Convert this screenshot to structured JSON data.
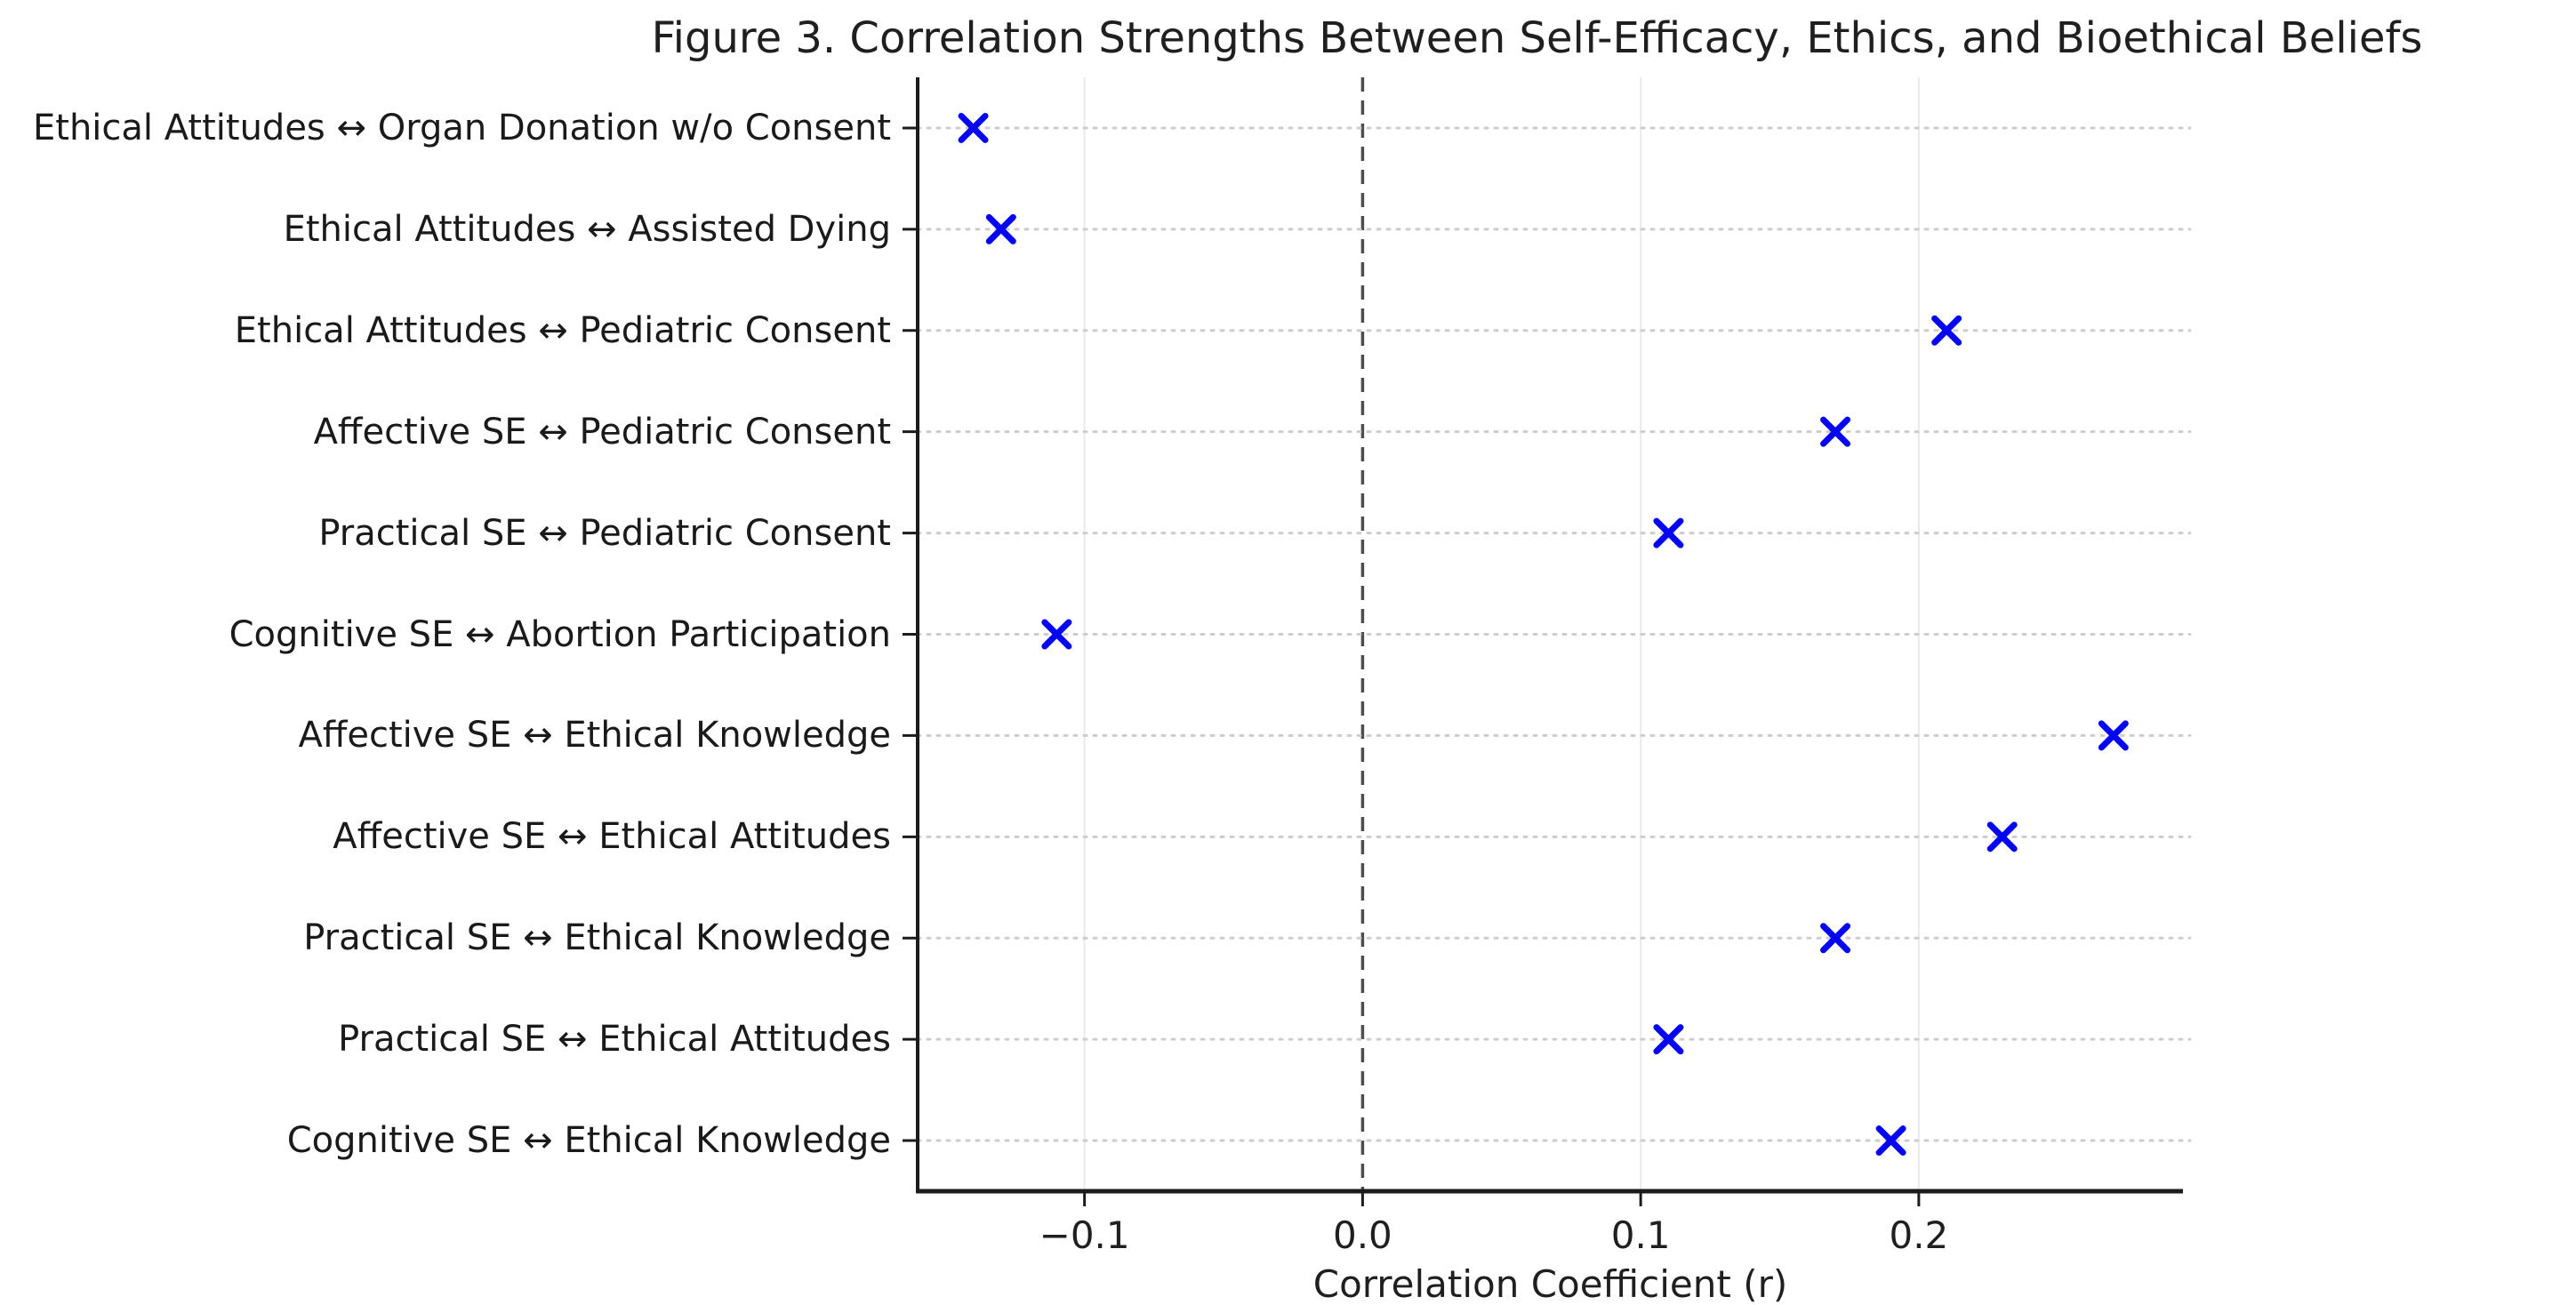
{
  "chart_data": {
    "type": "scatter",
    "orientation": "horizontal",
    "title": "Figure 3. Correlation Strengths Between Self-Efficacy, Ethics, and Bioethical Beliefs",
    "xlabel": "Correlation Coefficient (r)",
    "ylabel": "",
    "legend_position": "none",
    "categories": [
      "Ethical Attitudes ↔ Organ Donation w/o Consent",
      "Ethical Attitudes ↔ Assisted Dying",
      "Ethical Attitudes ↔ Pediatric Consent",
      "Affective SE ↔ Pediatric Consent",
      "Practical SE ↔ Pediatric Consent",
      "Cognitive SE ↔ Abortion Participation",
      "Affective SE ↔ Ethical Knowledge",
      "Affective SE ↔ Ethical Attitudes",
      "Practical SE ↔ Ethical Knowledge",
      "Practical SE ↔ Ethical Attitudes",
      "Cognitive SE ↔ Ethical Knowledge"
    ],
    "values": [
      -0.14,
      -0.13,
      0.21,
      0.17,
      0.11,
      -0.11,
      0.27,
      0.23,
      0.17,
      0.11,
      0.19
    ],
    "xlim": [
      -0.16,
      0.295
    ],
    "xticks": [
      -0.1,
      0.0,
      0.1,
      0.2
    ],
    "xtick_labels": [
      "−0.1",
      "0.0",
      "0.1",
      "0.2"
    ],
    "zero_reference_line": 0.0,
    "grid": {
      "horizontal_style": "dotted",
      "vertical_gridlines_at_ticks": true
    },
    "marker": {
      "shape": "x",
      "color": "#0404f5",
      "size": 27
    },
    "colors": {
      "axis_spine": "#1c1c1c",
      "horizontal_grid": "#cdcdcd",
      "vertical_grid": "#eaeaea",
      "zero_line": "#4d4d4d",
      "text": "#1f1f1f",
      "background": "#ffffff"
    }
  }
}
